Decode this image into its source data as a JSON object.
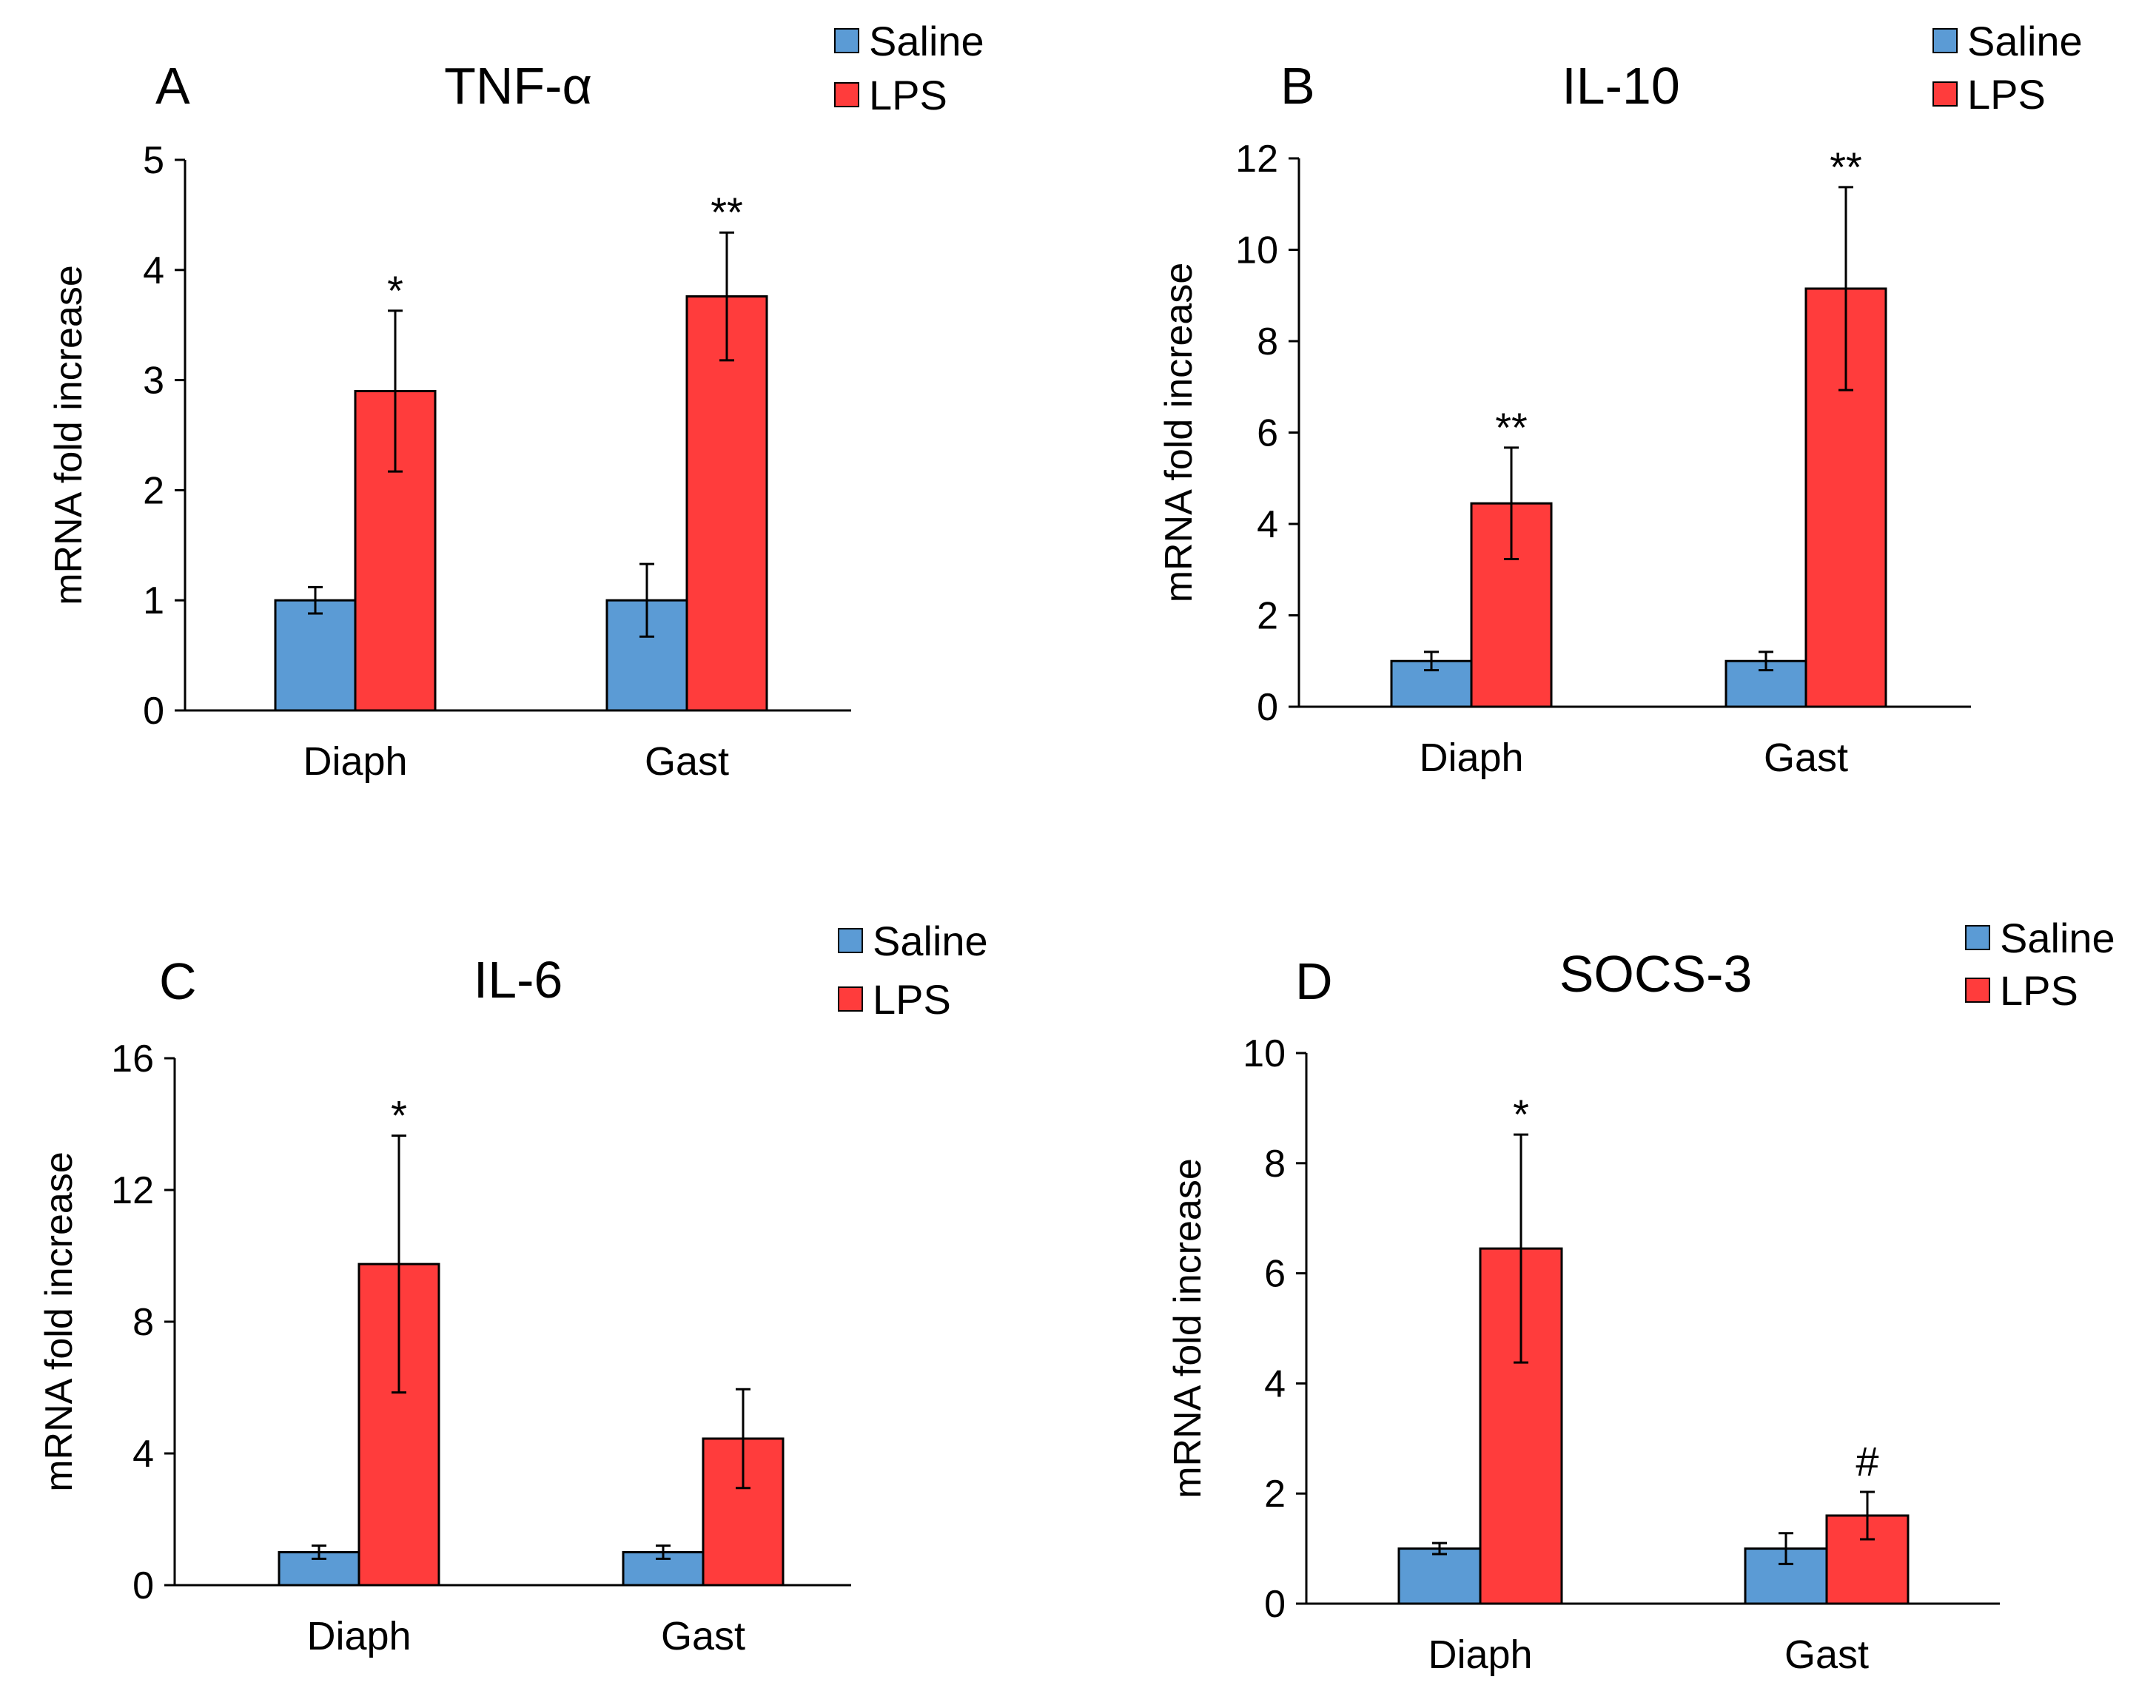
{
  "figure": {
    "series_names": [
      "Saline",
      "LPS"
    ],
    "colors": {
      "saline": "#5b9bd5",
      "lps": "#ff3c3c",
      "axis": "#000000"
    }
  },
  "chart_data": [
    {
      "type": "bar",
      "panel": "A",
      "title": "TNF-α",
      "ylabel": "mRNA fold increase",
      "xlabel": "",
      "categories": [
        "Diaph",
        "Gast"
      ],
      "ylim": [
        0,
        5
      ],
      "yticks": [
        0,
        1,
        2,
        3,
        4,
        5
      ],
      "series": [
        {
          "name": "Saline",
          "values": [
            1.0,
            1.0
          ],
          "errors": [
            0.12,
            0.33
          ]
        },
        {
          "name": "LPS",
          "values": [
            2.9,
            3.76
          ],
          "errors": [
            0.73,
            0.58
          ]
        }
      ],
      "annotations": [
        {
          "series": "LPS",
          "category": "Diaph",
          "text": "*"
        },
        {
          "series": "LPS",
          "category": "Gast",
          "text": "**"
        }
      ],
      "legend": "top-right"
    },
    {
      "type": "bar",
      "panel": "B",
      "title": "IL-10",
      "ylabel": "mRNA fold increase",
      "xlabel": "",
      "categories": [
        "Diaph",
        "Gast"
      ],
      "ylim": [
        0,
        12
      ],
      "yticks": [
        0,
        2,
        4,
        6,
        8,
        10,
        12
      ],
      "series": [
        {
          "name": "Saline",
          "values": [
            1.0,
            1.0
          ],
          "errors": [
            0.2,
            0.2
          ]
        },
        {
          "name": "LPS",
          "values": [
            4.45,
            9.15
          ],
          "errors": [
            1.22,
            2.22
          ]
        }
      ],
      "annotations": [
        {
          "series": "LPS",
          "category": "Diaph",
          "text": "**"
        },
        {
          "series": "LPS",
          "category": "Gast",
          "text": "**"
        }
      ],
      "legend": "top-right"
    },
    {
      "type": "bar",
      "panel": "C",
      "title": "IL-6",
      "ylabel": "mRNA fold increase",
      "xlabel": "",
      "categories": [
        "Diaph",
        "Gast"
      ],
      "ylim": [
        0,
        16
      ],
      "yticks": [
        0,
        4,
        8,
        12,
        16
      ],
      "series": [
        {
          "name": "Saline",
          "values": [
            1.0,
            1.0
          ],
          "errors": [
            0.2,
            0.2
          ]
        },
        {
          "name": "LPS",
          "values": [
            9.75,
            4.45
          ],
          "errors": [
            3.9,
            1.5
          ]
        }
      ],
      "annotations": [
        {
          "series": "LPS",
          "category": "Diaph",
          "text": "*"
        }
      ],
      "legend": "top-right"
    },
    {
      "type": "bar",
      "panel": "D",
      "title": "SOCS-3",
      "ylabel": "mRNA fold increase",
      "xlabel": "",
      "categories": [
        "Diaph",
        "Gast"
      ],
      "ylim": [
        0,
        10
      ],
      "yticks": [
        0,
        2,
        4,
        6,
        8,
        10
      ],
      "series": [
        {
          "name": "Saline",
          "values": [
            1.0,
            1.0
          ],
          "errors": [
            0.1,
            0.28
          ]
        },
        {
          "name": "LPS",
          "values": [
            6.45,
            1.6
          ],
          "errors": [
            2.07,
            0.43
          ]
        }
      ],
      "annotations": [
        {
          "series": "LPS",
          "category": "Diaph",
          "text": "*"
        },
        {
          "series": "LPS",
          "category": "Gast",
          "text": "#"
        }
      ],
      "legend": "top-right"
    }
  ]
}
